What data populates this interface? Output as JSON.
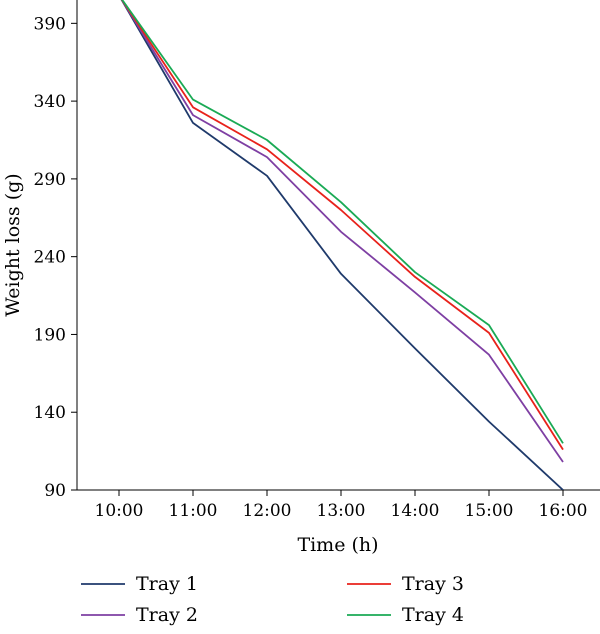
{
  "chart_data": {
    "type": "line",
    "title": "",
    "xlabel": "Time (h)",
    "ylabel": "Weight loss (g)",
    "categories": [
      "10:00",
      "11:00",
      "12:00",
      "13:00",
      "14:00",
      "15:00",
      "16:00"
    ],
    "ylim": [
      90,
      405
    ],
    "yticks": [
      90,
      140,
      190,
      240,
      290,
      340,
      390
    ],
    "grid": false,
    "legend_position": "bottom",
    "series": [
      {
        "name": "Tray 1",
        "color": "#1f3a6b",
        "values": [
          408,
          326,
          292,
          229,
          181,
          134,
          90
        ]
      },
      {
        "name": "Tray 2",
        "color": "#7e3fa3",
        "values": [
          408,
          331,
          304,
          256,
          217,
          177,
          108
        ]
      },
      {
        "name": "Tray 3",
        "color": "#e8221b",
        "values": [
          408,
          336,
          309,
          270,
          227,
          191,
          116
        ]
      },
      {
        "name": "Tray 4",
        "color": "#1aaa55",
        "values": [
          408,
          341,
          315,
          275,
          230,
          196,
          120
        ]
      }
    ]
  }
}
